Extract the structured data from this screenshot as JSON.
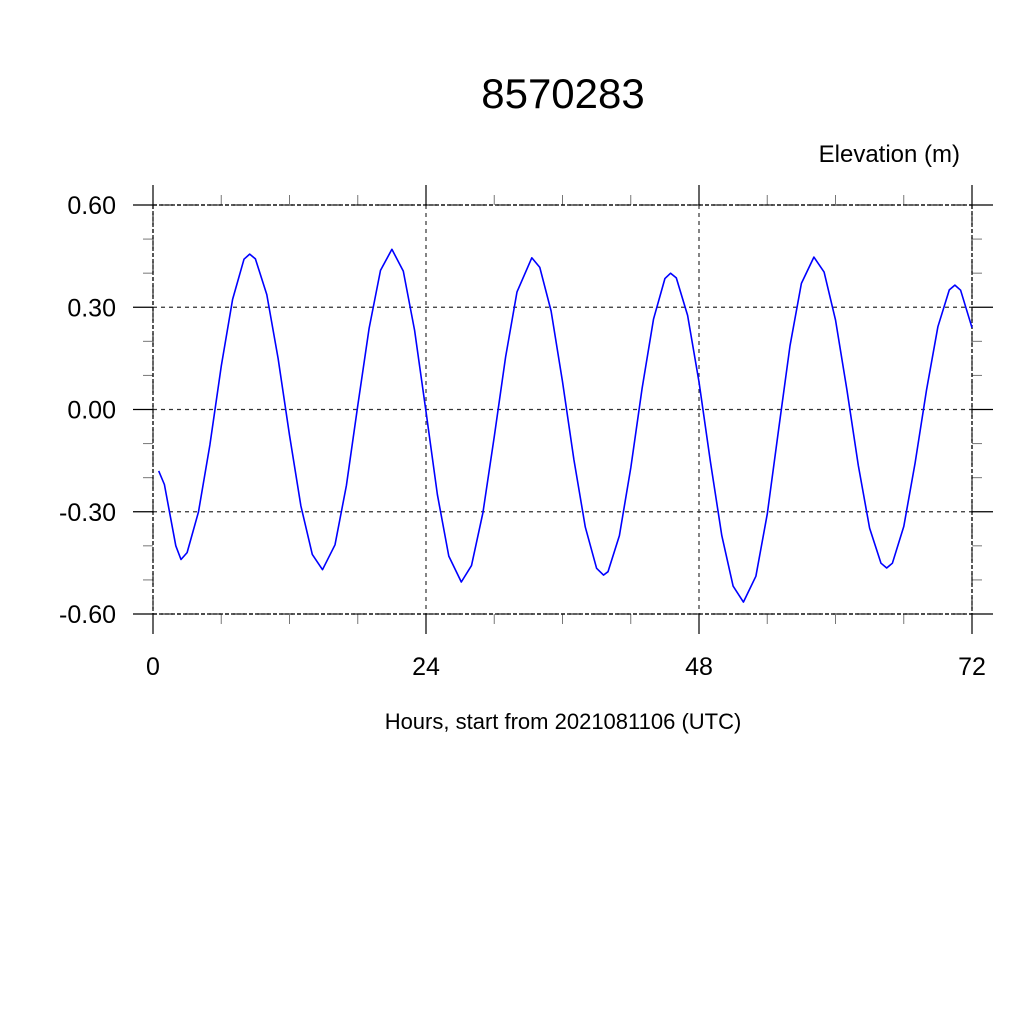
{
  "chart_data": {
    "type": "line",
    "title": "8570283",
    "ylabel": "Elevation (m)",
    "xlabel": "Hours, start from 2021081106 (UTC)",
    "xlim": [
      0,
      72
    ],
    "ylim": [
      -0.6,
      0.6
    ],
    "x_ticks": [
      0,
      24,
      48,
      72
    ],
    "x_tick_labels": [
      "0",
      "24",
      "48",
      "72"
    ],
    "x_minor_step": 6,
    "y_ticks": [
      0.6,
      0.3,
      0.0,
      -0.3,
      -0.6
    ],
    "y_tick_labels": [
      "0.60",
      "0.30",
      "0.00",
      "-0.30",
      "-0.60"
    ],
    "y_minor_step": 0.1,
    "grid": true,
    "grid_style": "dashed",
    "series": [
      {
        "color": "#0000ff",
        "x": [
          0.5,
          1,
          2,
          2.46,
          3,
          4,
          5,
          6,
          7,
          8,
          8.5,
          9,
          10,
          11,
          12,
          13,
          14,
          14.9,
          16,
          17,
          18,
          19,
          20,
          21,
          22,
          23,
          24,
          25,
          26,
          27.1,
          28,
          29,
          30,
          31,
          32,
          33.3,
          34,
          35,
          36,
          37,
          38,
          39,
          39.6,
          40,
          41,
          42,
          43,
          44,
          45,
          45.5,
          46,
          47,
          48,
          49,
          50,
          51,
          51.9,
          53,
          54,
          55,
          56,
          57,
          58.1,
          59,
          60,
          61,
          62,
          63,
          64,
          64.5,
          65,
          66,
          67,
          68,
          69,
          70,
          70.5,
          71,
          72
        ],
        "y": [
          -0.18,
          -0.22,
          -0.4,
          -0.44,
          -0.42,
          -0.3,
          -0.104,
          0.128,
          0.323,
          0.441,
          0.456,
          0.442,
          0.337,
          0.15,
          -0.075,
          -0.283,
          -0.425,
          -0.47,
          -0.397,
          -0.223,
          0.012,
          0.238,
          0.408,
          0.47,
          0.406,
          0.232,
          -0.006,
          -0.25,
          -0.43,
          -0.506,
          -0.458,
          -0.303,
          -0.079,
          0.154,
          0.345,
          0.445,
          0.417,
          0.289,
          0.082,
          -0.147,
          -0.345,
          -0.466,
          -0.486,
          -0.476,
          -0.37,
          -0.171,
          0.062,
          0.265,
          0.384,
          0.4,
          0.386,
          0.276,
          0.081,
          -0.153,
          -0.37,
          -0.518,
          -0.565,
          -0.489,
          -0.306,
          -0.059,
          0.187,
          0.37,
          0.447,
          0.403,
          0.263,
          0.058,
          -0.164,
          -0.348,
          -0.451,
          -0.465,
          -0.451,
          -0.343,
          -0.157,
          0.057,
          0.243,
          0.351,
          0.365,
          0.35,
          0.24
        ]
      }
    ]
  }
}
